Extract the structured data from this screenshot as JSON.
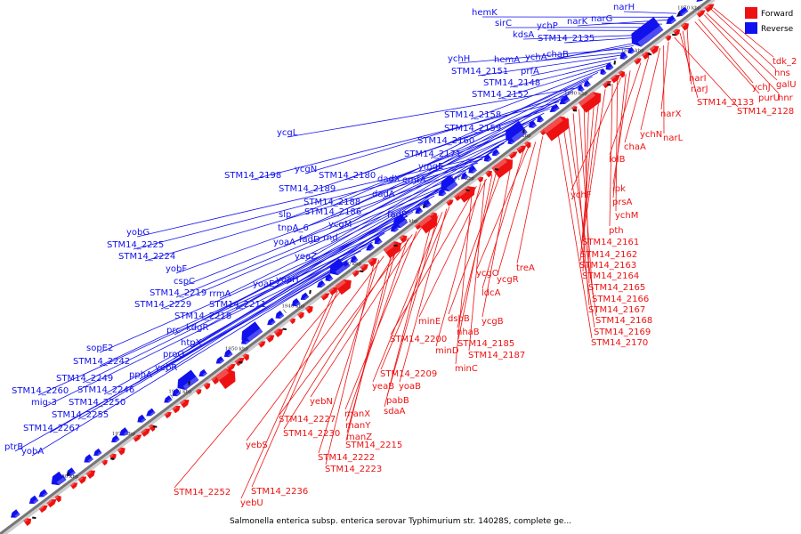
{
  "caption": "Salmonella enterica subsp. enterica serovar Typhimurium str. 14028S, complete ge...",
  "legend": [
    {
      "label": "Forward",
      "color": "#ee1111"
    },
    {
      "label": "Reverse",
      "color": "#1111ee"
    }
  ],
  "colors": {
    "forward": "#ee1111",
    "reverse": "#1111ee",
    "backbone": "#999999",
    "noncoding": "#111111"
  },
  "ticks": [
    "1870 kbp",
    "1880 kbp",
    "1890 kbp",
    "1900 kbp",
    "1910 kbp",
    "1920 kbp",
    "1930 kbp",
    "1940 kbp",
    "1950 kbp",
    "1960 kbp",
    "1970 kbp",
    "1980 kbp"
  ],
  "reverse_genes": [
    "narH",
    "hemK",
    "narK",
    "narG",
    "sirC",
    "ychP",
    "kdsA",
    "STM14_2135",
    "chaB",
    "ychA",
    "ychH",
    "hemA",
    "STM14_2151",
    "prfA",
    "STM14_2148",
    "STM14_2152",
    "STM14_2158",
    "STM14_2159",
    "STM14_2160",
    "STM14_2171",
    "ymgE",
    "ycgL",
    "emtA",
    "ycgN",
    "dadX",
    "STM14_2198",
    "STM14_2180",
    "STM14_2189",
    "dadA",
    "STM14_2188",
    "STM14_2186",
    "fadR",
    "slp",
    "ycgM",
    "tnpA_6",
    "rnd",
    "fadD",
    "yoaA",
    "yeaZ",
    "yobG",
    "STM14_2225",
    "STM14_2224",
    "yobF",
    "yoaH",
    "cspC",
    "yoaE",
    "STM14_2219",
    "rrmA",
    "STM14_2229",
    "STM14_2211",
    "STM14_2218",
    "kdgR",
    "prc",
    "htpX",
    "proQ",
    "sopE2",
    "yebR",
    "STM14_2242",
    "pphA",
    "STM14_2249",
    "STM14_2260",
    "STM14_2246",
    "mig-3",
    "STM14_2250",
    "STM14_2255",
    "STM14_2267",
    "yobA",
    "ptrB"
  ],
  "forward_genes": [
    "tdk_2",
    "hns",
    "galU",
    "narI",
    "hnr",
    "ychJ",
    "purU",
    "narJ",
    "STM14_2133",
    "STM14_2128",
    "narX",
    "ychN",
    "narL",
    "chaA",
    "lolB",
    "ipk",
    "ychF",
    "prsA",
    "ychM",
    "pth",
    "STM14_2161",
    "STM14_2162",
    "STM14_2163",
    "STM14_2164",
    "STM14_2165",
    "STM14_2166",
    "STM14_2167",
    "STM14_2168",
    "STM14_2169",
    "STM14_2170",
    "treA",
    "ycgO",
    "ycgR",
    "ldcA",
    "ycgB",
    "dsbB",
    "nhaB",
    "minE",
    "STM14_2185",
    "STM14_2200",
    "minD",
    "STM14_2187",
    "minC",
    "STM14_2209",
    "yeaB",
    "yoaB",
    "pabB",
    "sdaA",
    "yebN",
    "manX",
    "STM14_2227",
    "manY",
    "STM14_2230",
    "manZ",
    "STM14_2215",
    "yebS",
    "STM14_2222",
    "STM14_2223",
    "STM14_2252",
    "STM14_2236",
    "yebU"
  ]
}
